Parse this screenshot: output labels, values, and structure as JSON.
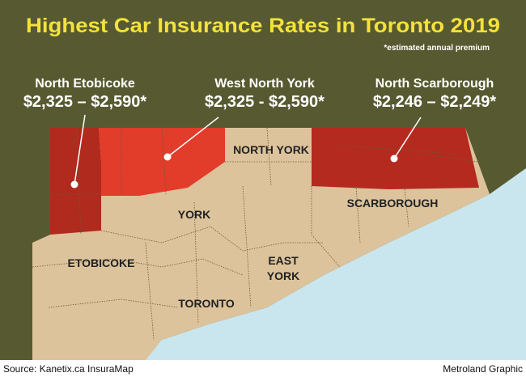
{
  "header": {
    "title": "Highest Car Insurance Rates in Toronto 2019",
    "note": "*estimated annual premium"
  },
  "callouts": [
    {
      "area": "North Etobicoke",
      "rate": "$2,325 – $2,590*"
    },
    {
      "area": "West North York",
      "rate": "$2,325 - $2,590*"
    },
    {
      "area": "North Scarborough",
      "rate": "$2,246 – $2,249*"
    }
  ],
  "districts": [
    "NORTH YORK",
    "YORK",
    "SCARBOROUGH",
    "ETOBICOKE",
    "EAST",
    "YORK",
    "TORONTO"
  ],
  "footer": {
    "source": "Source: Kanetix.ca InsuraMap",
    "credit": "Metroland Graphic"
  }
}
